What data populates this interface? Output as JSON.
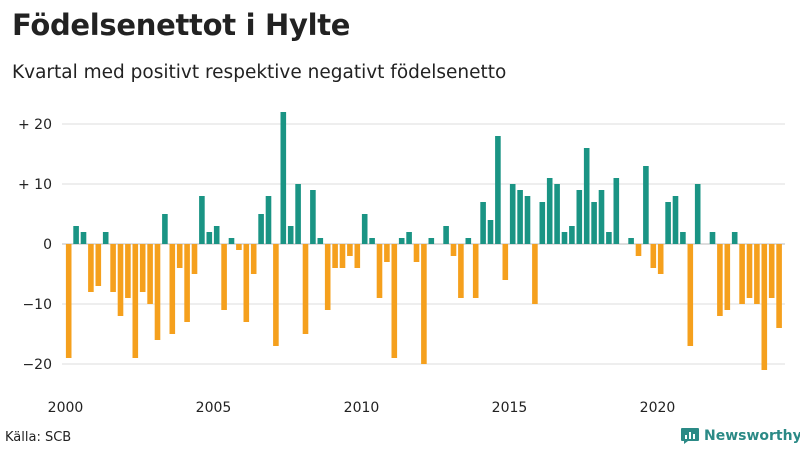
{
  "header": {
    "title": "Födelsenettot i Hylte",
    "subtitle": "Kvartal med positivt respektive negativt födelsenetto"
  },
  "footer": {
    "source": "Källa: SCB",
    "brand": "Newsworthy"
  },
  "colors": {
    "positive": "#1a9484",
    "negative": "#f5a01d",
    "brand": "#2b8a86"
  },
  "chart_data": {
    "type": "bar",
    "title": "Födelsenettot i Hylte",
    "subtitle": "Kvartal med positivt respektive negativt födelsenetto",
    "xlabel": "",
    "ylabel": "",
    "ylim": [
      -22,
      22
    ],
    "grid": true,
    "y_ticks": [
      {
        "value": 20,
        "label": "+ 20"
      },
      {
        "value": 10,
        "label": "+ 10"
      },
      {
        "value": 0,
        "label": "0"
      },
      {
        "value": -10,
        "label": "−10"
      },
      {
        "value": -20,
        "label": "−20"
      }
    ],
    "x_ticks": [
      {
        "year": 2000,
        "label": "2000"
      },
      {
        "year": 2005,
        "label": "2005"
      },
      {
        "year": 2010,
        "label": "2010"
      },
      {
        "year": 2015,
        "label": "2015"
      },
      {
        "year": 2020,
        "label": "2020"
      }
    ],
    "start_year": 2000,
    "quarters_per_year": 4,
    "values": [
      -19,
      3,
      2,
      -8,
      -7,
      2,
      -8,
      -12,
      -9,
      -19,
      -8,
      -10,
      -16,
      5,
      -15,
      -4,
      -13,
      -5,
      8,
      2,
      3,
      -11,
      1,
      -1,
      -13,
      -5,
      5,
      8,
      -17,
      22,
      3,
      10,
      -15,
      9,
      1,
      -11,
      -4,
      -4,
      -2,
      -4,
      5,
      1,
      -9,
      -3,
      -19,
      1,
      2,
      -3,
      -20,
      1,
      0,
      3,
      -2,
      -9,
      1,
      -9,
      7,
      4,
      18,
      -6,
      10,
      9,
      8,
      -10,
      7,
      11,
      10,
      2,
      3,
      9,
      16,
      7,
      9,
      2,
      11,
      0,
      1,
      -2,
      13,
      -4,
      -5,
      7,
      8,
      2,
      -17,
      10,
      0,
      2,
      -12,
      -11,
      2,
      -10,
      -9,
      -10,
      -21,
      -9,
      -14
    ]
  }
}
